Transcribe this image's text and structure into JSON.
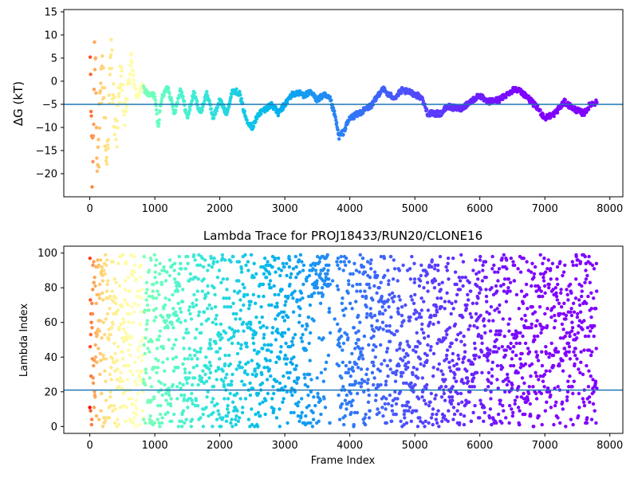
{
  "chart_data": [
    {
      "type": "scatter",
      "title": "",
      "xlabel": "",
      "ylabel": "ΔG (kT)",
      "xlim": [
        -400,
        8200
      ],
      "ylim": [
        -25,
        15.5
      ],
      "xticks": [
        0,
        1000,
        2000,
        3000,
        4000,
        5000,
        6000,
        7000,
        8000
      ],
      "yticks": [
        -20,
        -15,
        -10,
        -5,
        0,
        5,
        10,
        15
      ],
      "colormap": "rainbow (red at frame 0 to violet at last frame)",
      "colors": {
        "axis_line": "#1f77b4",
        "start": "#ff0000",
        "end": "#8000ff"
      },
      "hline": -5,
      "frame_count": 7800,
      "trace_approx": [
        {
          "x": 0,
          "y": 10
        },
        {
          "x": 40,
          "y": -22
        },
        {
          "x": 80,
          "y": 10
        },
        {
          "x": 120,
          "y": -18
        },
        {
          "x": 200,
          "y": 3
        },
        {
          "x": 260,
          "y": -18
        },
        {
          "x": 330,
          "y": 6.5
        },
        {
          "x": 400,
          "y": -14
        },
        {
          "x": 470,
          "y": 2
        },
        {
          "x": 540,
          "y": -8
        },
        {
          "x": 640,
          "y": 5
        },
        {
          "x": 720,
          "y": -4
        },
        {
          "x": 800,
          "y": -1
        },
        {
          "x": 900,
          "y": -3
        },
        {
          "x": 1000,
          "y": -3
        },
        {
          "x": 1050,
          "y": -10
        },
        {
          "x": 1100,
          "y": -4
        },
        {
          "x": 1200,
          "y": -1
        },
        {
          "x": 1300,
          "y": -7
        },
        {
          "x": 1400,
          "y": -1.5
        },
        {
          "x": 1500,
          "y": -8
        },
        {
          "x": 1600,
          "y": -2.5
        },
        {
          "x": 1700,
          "y": -7
        },
        {
          "x": 1800,
          "y": -2.5
        },
        {
          "x": 1900,
          "y": -8
        },
        {
          "x": 2000,
          "y": -4
        },
        {
          "x": 2100,
          "y": -7
        },
        {
          "x": 2200,
          "y": -2
        },
        {
          "x": 2300,
          "y": -2.5
        },
        {
          "x": 2400,
          "y": -8
        },
        {
          "x": 2500,
          "y": -10
        },
        {
          "x": 2600,
          "y": -7
        },
        {
          "x": 2700,
          "y": -6
        },
        {
          "x": 2800,
          "y": -5
        },
        {
          "x": 2900,
          "y": -7
        },
        {
          "x": 3000,
          "y": -5
        },
        {
          "x": 3100,
          "y": -3
        },
        {
          "x": 3200,
          "y": -2.5
        },
        {
          "x": 3300,
          "y": -3
        },
        {
          "x": 3400,
          "y": -2.5
        },
        {
          "x": 3500,
          "y": -4
        },
        {
          "x": 3600,
          "y": -3
        },
        {
          "x": 3700,
          "y": -4
        },
        {
          "x": 3780,
          "y": -8
        },
        {
          "x": 3830,
          "y": -12
        },
        {
          "x": 3900,
          "y": -11
        },
        {
          "x": 4000,
          "y": -8
        },
        {
          "x": 4200,
          "y": -6.5
        },
        {
          "x": 4350,
          "y": -5
        },
        {
          "x": 4500,
          "y": -1.5
        },
        {
          "x": 4600,
          "y": -3
        },
        {
          "x": 4700,
          "y": -3.5
        },
        {
          "x": 4800,
          "y": -2
        },
        {
          "x": 4950,
          "y": -2.5
        },
        {
          "x": 5100,
          "y": -3.5
        },
        {
          "x": 5200,
          "y": -7
        },
        {
          "x": 5400,
          "y": -7
        },
        {
          "x": 5500,
          "y": -5.5
        },
        {
          "x": 5700,
          "y": -6
        },
        {
          "x": 5900,
          "y": -4
        },
        {
          "x": 6000,
          "y": -3
        },
        {
          "x": 6100,
          "y": -4.5
        },
        {
          "x": 6300,
          "y": -4
        },
        {
          "x": 6450,
          "y": -2.5
        },
        {
          "x": 6550,
          "y": -1.5
        },
        {
          "x": 6700,
          "y": -3
        },
        {
          "x": 6900,
          "y": -6
        },
        {
          "x": 7000,
          "y": -8
        },
        {
          "x": 7150,
          "y": -7
        },
        {
          "x": 7300,
          "y": -4.5
        },
        {
          "x": 7450,
          "y": -6
        },
        {
          "x": 7600,
          "y": -7
        },
        {
          "x": 7700,
          "y": -5
        },
        {
          "x": 7800,
          "y": -4.5
        }
      ]
    },
    {
      "type": "scatter",
      "title": "Lambda Trace for PROJ18433/RUN20/CLONE16",
      "xlabel": "Frame Index",
      "ylabel": "Lambda Index",
      "xlim": [
        -400,
        8200
      ],
      "ylim": [
        -4,
        104
      ],
      "xticks": [
        0,
        1000,
        2000,
        3000,
        4000,
        5000,
        6000,
        7000,
        8000
      ],
      "yticks": [
        0,
        20,
        40,
        60,
        80,
        100
      ],
      "colormap": "rainbow (red at frame 0 to violet at last frame)",
      "colors": {
        "axis_line": "#1f77b4",
        "start": "#ff0000",
        "end": "#8000ff"
      },
      "hline": 21,
      "frame_count": 7800,
      "lambda_range": [
        0,
        99
      ],
      "sparse_band_x": [
        3700,
        3800
      ]
    }
  ]
}
